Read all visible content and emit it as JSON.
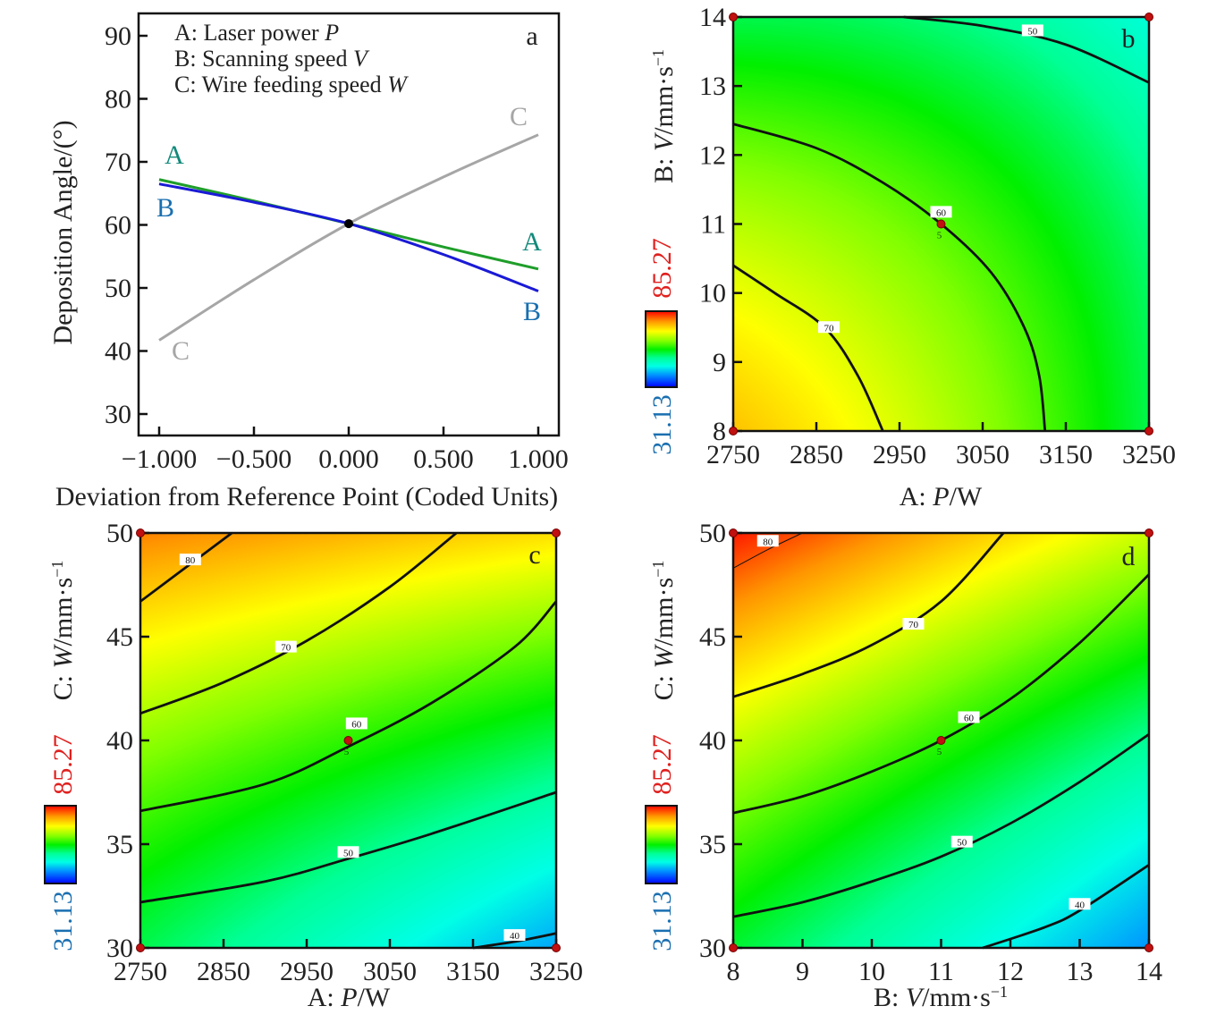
{
  "chart_data": [
    {
      "panel": "a",
      "type": "line",
      "xlabel": "Deviation from Reference Point (Coded Units)",
      "ylabel": "Deposition Angle/(°)",
      "xlim": [
        -1,
        1
      ],
      "ylim": [
        30,
        90
      ],
      "xticks": [
        -1,
        -0.5,
        0,
        0.5,
        1
      ],
      "xtick_labels": [
        "−1.000",
        "−0.500",
        "0.000",
        "0.500",
        "1.000"
      ],
      "yticks": [
        30,
        40,
        50,
        60,
        70,
        80,
        90
      ],
      "legend": [
        {
          "prefix": "A: Laser power ",
          "var": "P"
        },
        {
          "prefix": "B: Scanning speed ",
          "var": "V"
        },
        {
          "prefix": "C: Wire feeding speed ",
          "var": "W"
        }
      ],
      "reference_point": {
        "x": 0,
        "y": 60.2
      },
      "series": [
        {
          "name": "A",
          "line_color": "#1f9e2a",
          "label_color": "#12897a",
          "x": [
            -1,
            -0.5,
            0,
            0.5,
            1
          ],
          "y": [
            67.2,
            63.8,
            60.2,
            56.5,
            53.0
          ]
        },
        {
          "name": "B",
          "line_color": "#1a1ad6",
          "label_color": "#1a6fb0",
          "x": [
            -1,
            -0.5,
            0,
            0.5,
            1
          ],
          "y": [
            66.5,
            63.6,
            60.2,
            55.3,
            49.5
          ]
        },
        {
          "name": "C",
          "line_color": "#a6a6a6",
          "label_color": "#a6a6a6",
          "x": [
            -1,
            -0.5,
            0,
            0.5,
            1
          ],
          "y": [
            41.7,
            51.3,
            60.2,
            67.6,
            74.3
          ]
        }
      ]
    },
    {
      "panel": "b",
      "type": "heatmap",
      "xlabel": {
        "prefix": "A: ",
        "var": "P",
        "unit": "/W"
      },
      "ylabel": {
        "prefix": "B: ",
        "var": "V",
        "unit": "/mm·s",
        "sup": "−1"
      },
      "xlim": [
        2750,
        3250
      ],
      "ylim": [
        8,
        14
      ],
      "xticks": [
        2750,
        2850,
        2950,
        3050,
        3150,
        3250
      ],
      "yticks": [
        8,
        9,
        10,
        11,
        12,
        13,
        14
      ],
      "colorbar": {
        "max": "85.27",
        "min": "31.13",
        "max_color": "#e0201e",
        "min_color": "#1a6fb0"
      },
      "contours": [
        {
          "level": "70",
          "label_at": [
            2865,
            9.5
          ],
          "points": [
            [
              2750,
              10.4
            ],
            [
              2800,
              10.0
            ],
            [
              2860,
              9.5
            ],
            [
              2900,
              8.8
            ],
            [
              2930,
              8
            ]
          ]
        },
        {
          "level": "60",
          "label_at": [
            3000,
            11.17
          ],
          "points": [
            [
              2750,
              12.45
            ],
            [
              2850,
              12.1
            ],
            [
              2930,
              11.6
            ],
            [
              3000,
              11.0
            ],
            [
              3060,
              10.3
            ],
            [
              3100,
              9.5
            ],
            [
              3118,
              8.8
            ],
            [
              3125,
              8
            ]
          ]
        },
        {
          "level": "50",
          "label_at": [
            3110,
            13.8
          ],
          "points": [
            [
              2955,
              14
            ],
            [
              3050,
              13.87
            ],
            [
              3150,
              13.6
            ],
            [
              3250,
              13.05
            ]
          ]
        }
      ],
      "design_points": [
        [
          2750,
          8
        ],
        [
          3250,
          8
        ],
        [
          2750,
          14
        ],
        [
          3250,
          14
        ],
        [
          3000,
          11
        ]
      ],
      "center_label": "5"
    },
    {
      "panel": "c",
      "type": "heatmap",
      "xlabel": {
        "prefix": "A: ",
        "var": "P",
        "unit": "/W"
      },
      "ylabel": {
        "prefix": "C: ",
        "var": "W",
        "unit": "/mm·s",
        "sup": "−1"
      },
      "xlim": [
        2750,
        3250
      ],
      "ylim": [
        30,
        50
      ],
      "xticks": [
        2750,
        2850,
        2950,
        3050,
        3150,
        3250
      ],
      "yticks": [
        30,
        35,
        40,
        45,
        50
      ],
      "colorbar": {
        "max": "85.27",
        "min": "31.13",
        "max_color": "#e0201e",
        "min_color": "#1a6fb0"
      },
      "contours": [
        {
          "level": "80",
          "label_at": [
            2810,
            48.7
          ],
          "points": [
            [
              2750,
              46.7
            ],
            [
              2800,
              48.2
            ],
            [
              2860,
              50
            ]
          ]
        },
        {
          "level": "70",
          "label_at": [
            2925,
            44.5
          ],
          "points": [
            [
              2750,
              41.3
            ],
            [
              2850,
              42.8
            ],
            [
              2950,
              44.8
            ],
            [
              3050,
              47.4
            ],
            [
              3130,
              50
            ]
          ]
        },
        {
          "level": "60",
          "label_at": [
            3010,
            40.8
          ],
          "points": [
            [
              2750,
              36.6
            ],
            [
              2900,
              37.9
            ],
            [
              3000,
              39.7
            ],
            [
              3100,
              41.8
            ],
            [
              3200,
              44.5
            ],
            [
              3250,
              46.7
            ]
          ]
        },
        {
          "level": "50",
          "label_at": [
            3000,
            34.6
          ],
          "points": [
            [
              2750,
              32.2
            ],
            [
              2900,
              33.2
            ],
            [
              3000,
              34.3
            ],
            [
              3100,
              35.5
            ],
            [
              3250,
              37.5
            ]
          ]
        },
        {
          "level": "40",
          "label_at": [
            3200,
            30.6
          ],
          "points": [
            [
              3150,
              30
            ],
            [
              3200,
              30.3
            ],
            [
              3250,
              30.7
            ]
          ]
        }
      ],
      "design_points": [
        [
          2750,
          30
        ],
        [
          3250,
          30
        ],
        [
          2750,
          50
        ],
        [
          3250,
          50
        ],
        [
          3000,
          40
        ]
      ],
      "center_label": "5"
    },
    {
      "panel": "d",
      "type": "heatmap",
      "xlabel": {
        "prefix": "B: ",
        "var": "V",
        "unit": "/mm·s",
        "sup": "−1"
      },
      "ylabel": {
        "prefix": "C: ",
        "var": "W",
        "unit": "/mm·s",
        "sup": "−1"
      },
      "xlim": [
        8,
        14
      ],
      "ylim": [
        30,
        50
      ],
      "xticks": [
        8,
        9,
        10,
        11,
        12,
        13,
        14
      ],
      "yticks": [
        30,
        35,
        40,
        45,
        50
      ],
      "colorbar": {
        "max": "85.27",
        "min": "31.13",
        "max_color": "#e0201e",
        "min_color": "#1a6fb0"
      },
      "contours": [
        {
          "level": "80",
          "label_at": [
            8.5,
            49.6
          ],
          "points": [
            [
              8,
              48.3
            ],
            [
              8.5,
              49.2
            ],
            [
              9,
              50
            ]
          ]
        },
        {
          "level": "70",
          "label_at": [
            10.6,
            45.6
          ],
          "points": [
            [
              8,
              42.1
            ],
            [
              9,
              43.2
            ],
            [
              10,
              44.6
            ],
            [
              11,
              46.7
            ],
            [
              11.9,
              50
            ]
          ]
        },
        {
          "level": "60",
          "label_at": [
            11.4,
            41.1
          ],
          "points": [
            [
              8,
              36.5
            ],
            [
              9,
              37.3
            ],
            [
              10,
              38.5
            ],
            [
              11,
              40
            ],
            [
              12,
              42
            ],
            [
              13,
              44.7
            ],
            [
              14,
              48
            ]
          ]
        },
        {
          "level": "50",
          "label_at": [
            11.3,
            35.1
          ],
          "points": [
            [
              8,
              31.5
            ],
            [
              9,
              32.2
            ],
            [
              10,
              33.2
            ],
            [
              11,
              34.4
            ],
            [
              12,
              36
            ],
            [
              13,
              38
            ],
            [
              14,
              40.3
            ]
          ]
        },
        {
          "level": "40",
          "label_at": [
            13,
            32.1
          ],
          "points": [
            [
              11.6,
              30
            ],
            [
              12.5,
              31
            ],
            [
              13,
              31.8
            ],
            [
              14,
              34
            ]
          ]
        }
      ],
      "design_points": [
        [
          8,
          30
        ],
        [
          14,
          30
        ],
        [
          8,
          50
        ],
        [
          14,
          50
        ],
        [
          11,
          40
        ]
      ],
      "center_label": "5"
    }
  ],
  "panel_letters": {
    "a": "a",
    "b": "b",
    "c": "c",
    "d": "d"
  }
}
